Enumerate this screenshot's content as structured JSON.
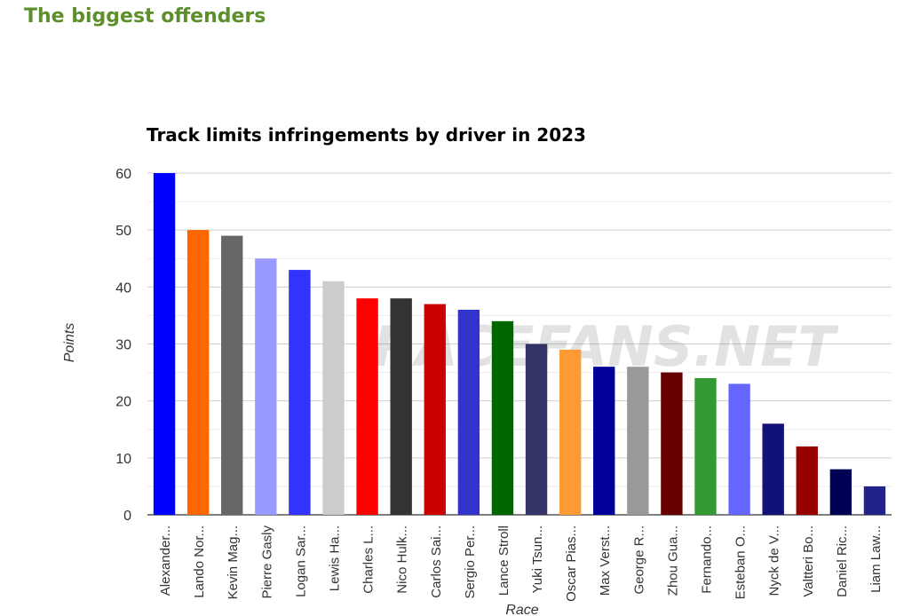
{
  "section_heading": "The biggest offenders",
  "chart_data": {
    "type": "bar",
    "title": "Track limits infringements by driver in 2023",
    "xlabel": "Race",
    "ylabel": "Points",
    "ylim": [
      0,
      60
    ],
    "yticks": [
      0,
      10,
      20,
      30,
      40,
      50,
      60
    ],
    "grid": true,
    "watermark": "RACEFANS.NET",
    "categories": [
      "Alexander...",
      "Lando Nor...",
      "Kevin Mag...",
      "Pierre Gasly",
      "Logan Sar...",
      "Lewis Ha...",
      "Charles L...",
      "Nico Hulk...",
      "Carlos Sai...",
      "Sergio Per...",
      "Lance Stroll",
      "Yuki Tsun...",
      "Oscar Pias...",
      "Max Verst...",
      "George R...",
      "Zhou Gua...",
      "Fernando...",
      "Esteban O...",
      "Nyck de V...",
      "Valtteri Bo...",
      "Daniel Ric...",
      "Liam Law..."
    ],
    "values": [
      60,
      50,
      49,
      45,
      43,
      41,
      38,
      38,
      37,
      36,
      34,
      30,
      29,
      26,
      26,
      25,
      24,
      23,
      16,
      12,
      8,
      5
    ],
    "colors": [
      "#0000ff",
      "#ff6600",
      "#666666",
      "#9999ff",
      "#3333ff",
      "#cccccc",
      "#ff0000",
      "#333333",
      "#cc0000",
      "#3333cc",
      "#006600",
      "#333366",
      "#ff9933",
      "#000099",
      "#999999",
      "#660000",
      "#339933",
      "#6666ff",
      "#111177",
      "#990000",
      "#000055",
      "#222288"
    ]
  }
}
